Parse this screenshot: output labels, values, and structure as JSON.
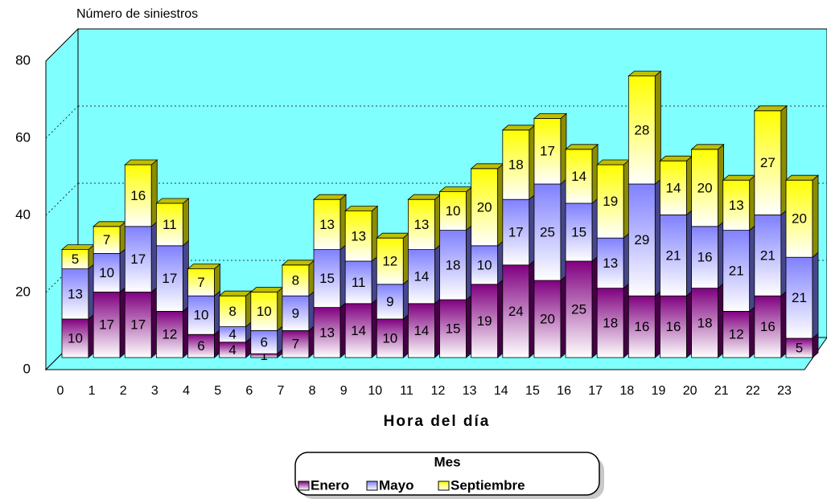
{
  "chart_data": {
    "type": "bar3d_stacked",
    "y_label": "Número de siniestros",
    "x_label": "Hora del día",
    "legend_title": "Mes",
    "categories": [
      "0",
      "1",
      "2",
      "3",
      "4",
      "5",
      "6",
      "7",
      "8",
      "9",
      "10",
      "11",
      "12",
      "13",
      "14",
      "15",
      "16",
      "17",
      "18",
      "19",
      "20",
      "21",
      "22",
      "23"
    ],
    "series": [
      {
        "name": "Enero",
        "color": "#800080",
        "values": [
          10,
          17,
          17,
          12,
          6,
          4,
          1,
          7,
          13,
          14,
          10,
          14,
          15,
          19,
          24,
          20,
          25,
          18,
          16,
          16,
          18,
          12,
          16,
          5
        ]
      },
      {
        "name": "Mayo",
        "color": "#8080ff",
        "values": [
          13,
          10,
          17,
          17,
          10,
          4,
          6,
          9,
          15,
          11,
          9,
          14,
          18,
          10,
          17,
          25,
          15,
          13,
          29,
          21,
          16,
          21,
          21,
          21
        ]
      },
      {
        "name": "Septiembre",
        "color": "#ffff00",
        "values": [
          5,
          7,
          16,
          11,
          7,
          8,
          10,
          8,
          13,
          13,
          12,
          13,
          10,
          20,
          18,
          17,
          14,
          19,
          28,
          14,
          20,
          13,
          27,
          20
        ]
      }
    ],
    "ylim": [
      0,
      80
    ],
    "yticks": [
      0,
      20,
      40,
      60,
      80
    ],
    "grid": true,
    "wall_color": "#80ffff",
    "legend": "bottom"
  }
}
